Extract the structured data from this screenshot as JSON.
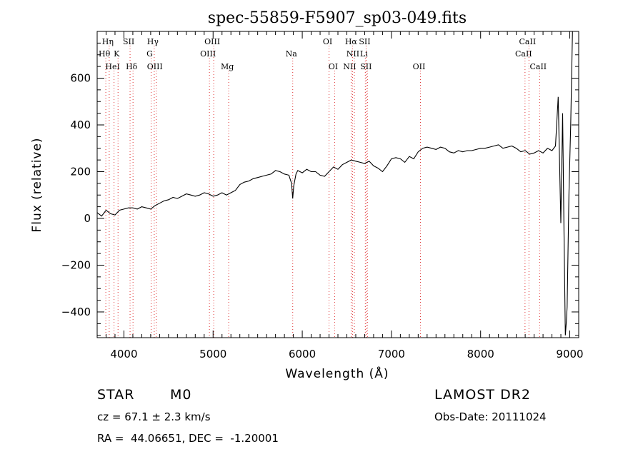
{
  "chart_data": {
    "type": "line",
    "title": "spec-55859-F5907_sp03-049.fits",
    "xlabel": "Wavelength (Å)",
    "ylabel": "Flux (relative)",
    "xlim": [
      3700,
      9100
    ],
    "ylim": [
      -510,
      800
    ],
    "xticks": [
      4000,
      5000,
      6000,
      7000,
      8000,
      9000
    ],
    "yticks": [
      -400,
      -200,
      0,
      200,
      400,
      600
    ],
    "grid": false,
    "line_color": "#000000",
    "marker_line_color": "#e03030",
    "series": [
      {
        "x": [
          3700,
          3750,
          3800,
          3850,
          3900,
          3950,
          4000,
          4050,
          4100,
          4150,
          4200,
          4250,
          4300,
          4350,
          4400,
          4450,
          4500,
          4550,
          4600,
          4650,
          4700,
          4750,
          4800,
          4850,
          4900,
          4950,
          5000,
          5050,
          5100,
          5150,
          5200,
          5250,
          5300,
          5350,
          5400,
          5450,
          5500,
          5550,
          5600,
          5650,
          5700,
          5750,
          5800,
          5850,
          5880,
          5893,
          5905,
          5930,
          5950,
          6000,
          6050,
          6100,
          6150,
          6200,
          6250,
          6300,
          6350,
          6400,
          6450,
          6500,
          6550,
          6600,
          6650,
          6700,
          6750,
          6800,
          6850,
          6900,
          6950,
          7000,
          7050,
          7100,
          7150,
          7200,
          7250,
          7300,
          7350,
          7400,
          7450,
          7500,
          7550,
          7600,
          7650,
          7700,
          7750,
          7800,
          7850,
          7900,
          7950,
          8000,
          8050,
          8100,
          8150,
          8200,
          8250,
          8300,
          8350,
          8400,
          8450,
          8500,
          8550,
          8600,
          8650,
          8700,
          8750,
          8800,
          8840,
          8870,
          8900,
          8920,
          8935,
          8950,
          8960,
          8970,
          8990,
          9010,
          9030,
          9050
        ],
        "y": [
          25,
          10,
          35,
          20,
          15,
          35,
          40,
          45,
          45,
          40,
          50,
          45,
          40,
          55,
          65,
          75,
          80,
          90,
          85,
          95,
          105,
          100,
          95,
          100,
          110,
          105,
          95,
          100,
          110,
          100,
          110,
          120,
          145,
          155,
          160,
          170,
          175,
          180,
          185,
          190,
          205,
          200,
          190,
          185,
          150,
          85,
          140,
          190,
          205,
          195,
          210,
          200,
          200,
          185,
          180,
          200,
          220,
          210,
          230,
          240,
          250,
          245,
          240,
          235,
          245,
          225,
          215,
          200,
          225,
          255,
          260,
          255,
          240,
          265,
          255,
          285,
          300,
          305,
          300,
          295,
          305,
          300,
          285,
          280,
          290,
          285,
          290,
          290,
          295,
          300,
          300,
          305,
          310,
          315,
          300,
          305,
          310,
          300,
          285,
          290,
          275,
          280,
          290,
          280,
          300,
          290,
          310,
          520,
          -20,
          450,
          -50,
          -500,
          -450,
          -380,
          100,
          400,
          800,
          800
        ]
      }
    ],
    "line_markers": [
      {
        "label": "Hη",
        "x": 3835,
        "row": 1
      },
      {
        "label": "Hθ",
        "x": 3797,
        "row": 2
      },
      {
        "label": "HeI",
        "x": 3889,
        "row": 3
      },
      {
        "label": "K",
        "x": 3934,
        "row": 2
      },
      {
        "label": "SII",
        "x": 4069,
        "row": 1
      },
      {
        "label": "Hδ",
        "x": 4102,
        "row": 3
      },
      {
        "label": "Hγ",
        "x": 4340,
        "row": 1
      },
      {
        "label": "G",
        "x": 4305,
        "row": 2
      },
      {
        "label": "OIII",
        "x": 4363,
        "row": 3
      },
      {
        "label": "OIII",
        "x": 5007,
        "row": 1
      },
      {
        "label": "OIII",
        "x": 4959,
        "row": 2
      },
      {
        "label": "Mg",
        "x": 5175,
        "row": 3
      },
      {
        "label": "Na",
        "x": 5893,
        "row": 2
      },
      {
        "label": "OI",
        "x": 6300,
        "row": 1
      },
      {
        "label": "OI",
        "x": 6363,
        "row": 3
      },
      {
        "label": "Hα",
        "x": 6563,
        "row": 1
      },
      {
        "label": "SII",
        "x": 6716,
        "row": 1
      },
      {
        "label": "NII",
        "x": 6584,
        "row": 2
      },
      {
        "label": "Li",
        "x": 6707,
        "row": 2
      },
      {
        "label": "NII",
        "x": 6548,
        "row": 3
      },
      {
        "label": "SII",
        "x": 6731,
        "row": 3
      },
      {
        "label": "OII",
        "x": 7325,
        "row": 3
      },
      {
        "label": "CaII",
        "x": 8542,
        "row": 1
      },
      {
        "label": "CaII",
        "x": 8498,
        "row": 2
      },
      {
        "label": "CaII",
        "x": 8662,
        "row": 3
      }
    ]
  },
  "info": {
    "object_class": "STAR",
    "subclass": "M0",
    "survey": "LAMOST DR2",
    "cz": "cz = 67.1 ± 2.3 km/s",
    "obs_date": "Obs-Date: 20111024",
    "radec": "RA =  44.06651, DEC =  -1.20001"
  }
}
